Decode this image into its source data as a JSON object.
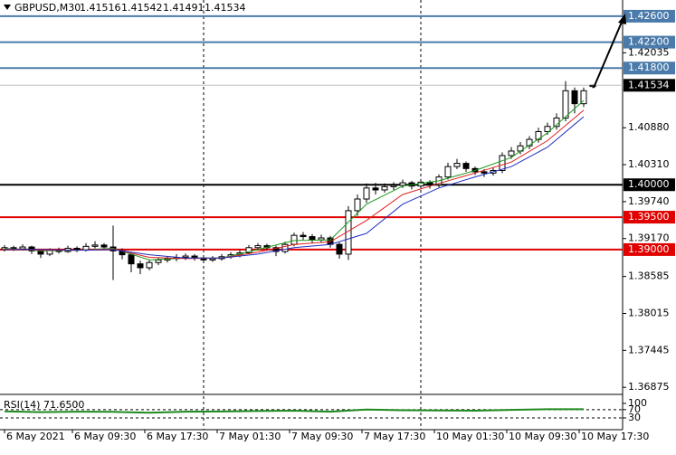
{
  "header": {
    "symbol": "GBPUSD,M30",
    "open": 1.41516,
    "high": 1.41542,
    "low": 1.41491,
    "close": 1.41534
  },
  "chart_data": {
    "type": "candlestick",
    "xlim": [
      -0.5,
      68.3
    ],
    "ylim": [
      1.3678,
      1.4285
    ],
    "yticks": [
      1.42035,
      {
        "value": 1.4088,
        "label": "1.40880"
      },
      {
        "value": 1.4031,
        "label": "1.40310"
      },
      {
        "value": 1.3974,
        "label": "1.39740"
      },
      {
        "value": 1.3917,
        "label": "1.39170"
      },
      1.38585,
      1.38015,
      1.37445,
      1.36875
    ],
    "xticks": [
      {
        "value": 0,
        "label": "6 May 2021"
      },
      {
        "value": 7.5,
        "label": "6 May 09:30"
      },
      {
        "value": 15.5,
        "label": "6 May 17:30"
      },
      {
        "value": 23.5,
        "label": "7 May 01:30"
      },
      {
        "value": 31.5,
        "label": "7 May 09:30"
      },
      {
        "value": 39.5,
        "label": "7 May 17:30"
      },
      {
        "value": 47.5,
        "label": "10 May 01:30"
      },
      {
        "value": 55.5,
        "label": "10 May 09:30"
      },
      {
        "value": 63.5,
        "label": "10 May 17:30"
      }
    ],
    "day_separators": [
      22,
      46
    ],
    "up_color": "#ffffff",
    "down_color": "#000000",
    "candles": {
      "open": [
        1.39,
        1.3903,
        1.3901,
        1.3904,
        1.3898,
        1.3893,
        1.3899,
        1.3897,
        1.3902,
        1.3899,
        1.3905,
        1.3907,
        1.3904,
        1.3898,
        1.3892,
        1.3878,
        1.3872,
        1.388,
        1.3884,
        1.3886,
        1.3888,
        1.389,
        1.3887,
        1.3884,
        1.3886,
        1.3889,
        1.3892,
        1.3895,
        1.3903,
        1.3906,
        1.3903,
        1.3897,
        1.3908,
        1.3922,
        1.392,
        1.3915,
        1.3918,
        1.3908,
        1.3893,
        1.396,
        1.3978,
        1.3995,
        1.3992,
        1.3997,
        1.3999,
        1.4003,
        1.3998,
        1.4004,
        1.4,
        1.4012,
        1.4028,
        1.4033,
        1.4025,
        1.402,
        1.4018,
        1.4022,
        1.4045,
        1.4052,
        1.406,
        1.407,
        1.4082,
        1.409,
        1.4103,
        1.4145,
        1.4125,
        1.41516
      ],
      "high": [
        1.3907,
        1.3906,
        1.3908,
        1.3906,
        1.39,
        1.3902,
        1.3903,
        1.3906,
        1.3905,
        1.391,
        1.3913,
        1.391,
        1.3937,
        1.3902,
        1.3895,
        1.3883,
        1.3884,
        1.3888,
        1.389,
        1.3893,
        1.3894,
        1.3893,
        1.389,
        1.389,
        1.3893,
        1.3896,
        1.3899,
        1.3907,
        1.391,
        1.3909,
        1.3906,
        1.3912,
        1.3926,
        1.3927,
        1.3924,
        1.3923,
        1.3921,
        1.3911,
        1.3967,
        1.3985,
        1.4002,
        1.4003,
        1.4002,
        1.4004,
        1.4008,
        1.4006,
        1.4009,
        1.4007,
        1.4016,
        1.4034,
        1.404,
        1.4036,
        1.4028,
        1.4024,
        1.4027,
        1.405,
        1.4058,
        1.4066,
        1.4075,
        1.4088,
        1.4096,
        1.411,
        1.416,
        1.415,
        1.415,
        1.41542
      ],
      "low": [
        1.3897,
        1.3898,
        1.3899,
        1.3893,
        1.3887,
        1.389,
        1.3894,
        1.3895,
        1.3896,
        1.3897,
        1.3902,
        1.39,
        1.3853,
        1.3885,
        1.3865,
        1.3862,
        1.3868,
        1.3876,
        1.388,
        1.3882,
        1.3884,
        1.3883,
        1.388,
        1.3881,
        1.3883,
        1.3886,
        1.3888,
        1.3893,
        1.3899,
        1.3898,
        1.389,
        1.3894,
        1.3905,
        1.3915,
        1.391,
        1.3911,
        1.3903,
        1.3886,
        1.3884,
        1.3952,
        1.3972,
        1.3985,
        1.3988,
        1.3992,
        1.3995,
        1.3993,
        1.3994,
        1.3994,
        1.3996,
        1.4008,
        1.4024,
        1.402,
        1.4015,
        1.4012,
        1.4014,
        1.4018,
        1.404,
        1.4047,
        1.4055,
        1.4065,
        1.4077,
        1.4085,
        1.4098,
        1.411,
        1.412,
        1.41491
      ],
      "close": [
        1.3903,
        1.3901,
        1.3904,
        1.3898,
        1.3893,
        1.3899,
        1.3897,
        1.3902,
        1.3899,
        1.3905,
        1.3907,
        1.3904,
        1.3898,
        1.3892,
        1.3878,
        1.3872,
        1.388,
        1.3884,
        1.3886,
        1.3888,
        1.389,
        1.3887,
        1.3884,
        1.3886,
        1.3889,
        1.3892,
        1.3895,
        1.3903,
        1.3906,
        1.3903,
        1.3897,
        1.3908,
        1.3922,
        1.392,
        1.3915,
        1.3918,
        1.3908,
        1.3893,
        1.396,
        1.3978,
        1.3995,
        1.3992,
        1.3997,
        1.3999,
        1.4003,
        1.3998,
        1.4004,
        1.4,
        1.4012,
        1.4028,
        1.4033,
        1.4025,
        1.402,
        1.4018,
        1.4022,
        1.4045,
        1.4052,
        1.406,
        1.407,
        1.4082,
        1.409,
        1.4103,
        1.4145,
        1.4125,
        1.4145,
        1.41534
      ]
    },
    "moving_averages": [
      {
        "color": "#1a9a1a",
        "x": [
          0,
          4,
          8,
          12,
          16,
          20,
          24,
          28,
          32,
          36,
          40,
          44,
          48,
          52,
          56,
          60,
          64
        ],
        "values": [
          1.3902,
          1.3898,
          1.3899,
          1.3902,
          1.3884,
          1.3887,
          1.3887,
          1.39,
          1.3914,
          1.3915,
          1.397,
          1.3998,
          1.4006,
          1.4022,
          1.4042,
          1.408,
          1.413
        ]
      },
      {
        "color": "#e02020",
        "x": [
          0,
          4,
          8,
          12,
          16,
          20,
          24,
          28,
          32,
          36,
          40,
          44,
          48,
          52,
          56,
          60,
          64
        ],
        "values": [
          1.3901,
          1.3899,
          1.3899,
          1.3901,
          1.3888,
          1.3886,
          1.3887,
          1.3896,
          1.3908,
          1.3912,
          1.3945,
          1.3985,
          1.4002,
          1.4018,
          1.4035,
          1.4068,
          1.4115
        ]
      },
      {
        "color": "#2030c0",
        "x": [
          0,
          4,
          8,
          12,
          16,
          20,
          24,
          28,
          32,
          36,
          40,
          44,
          48,
          52,
          56,
          60,
          64
        ],
        "values": [
          1.39,
          1.39,
          1.3899,
          1.39,
          1.3892,
          1.3887,
          1.3887,
          1.3893,
          1.3903,
          1.3908,
          1.3925,
          1.397,
          1.3995,
          1.4012,
          1.4028,
          1.4058,
          1.4105
        ]
      }
    ],
    "levels": [
      {
        "value": 1.426,
        "label": "1.42600",
        "color": "#4a7bab"
      },
      {
        "value": 1.422,
        "label": "1.42200",
        "color": "#4a7bab"
      },
      {
        "value": 1.418,
        "label": "1.41800",
        "color": "#4a7bab"
      },
      {
        "value": 1.4,
        "label": "1.40000",
        "color": "#000000"
      },
      {
        "value": 1.395,
        "label": "1.39500",
        "color": "#e00000"
      },
      {
        "value": 1.39,
        "label": "1.39000",
        "color": "#e00000"
      }
    ],
    "current_price": {
      "value": 1.41534,
      "color": "#c0c0c0"
    },
    "rsi": {
      "label": "RSI(14) 71.6500",
      "color": "#1e8a1e",
      "ylim": [
        -18,
        139
      ],
      "yticks": [
        100,
        70,
        30
      ],
      "levels": [
        70,
        30
      ],
      "x": [
        0,
        4,
        8,
        12,
        16,
        20,
        24,
        28,
        32,
        36,
        40,
        44,
        48,
        52,
        56,
        60,
        64
      ],
      "values": [
        62,
        58,
        60,
        59,
        55,
        60,
        61,
        63,
        65,
        60,
        70,
        67,
        66,
        65,
        69,
        72,
        71.65
      ]
    }
  }
}
